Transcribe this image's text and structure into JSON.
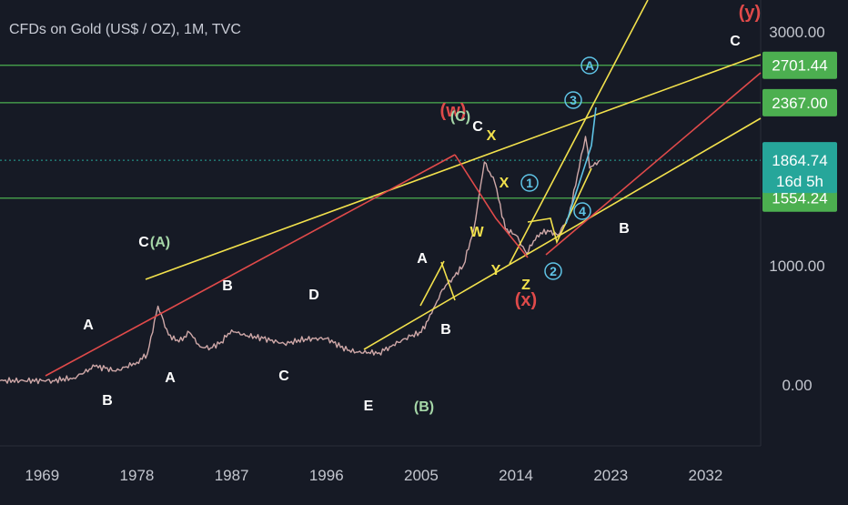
{
  "chart_data": {
    "type": "line",
    "title": "CFDs on Gold (US$ / OZ), 1M, TVC",
    "x_tick_labels": [
      "1969",
      "1978",
      "1987",
      "1996",
      "2005",
      "2014",
      "2023",
      "2032"
    ],
    "x_range": [
      1965,
      2040
    ],
    "y_tick_labels": [
      "3000.00",
      "1000.00",
      "0.00"
    ],
    "series": [
      {
        "x": [
          1965,
          1970,
          1972,
          1974,
          1975,
          1976,
          1978,
          1979,
          1980,
          1981,
          1982,
          1983,
          1984,
          1985,
          1986,
          1987,
          1988,
          1990,
          1992,
          1994,
          1996,
          1998,
          1999,
          2001,
          2002,
          2004,
          2005,
          2006,
          2007,
          2008,
          2009,
          2010,
          2011,
          2012,
          2013,
          2014,
          2015,
          2016,
          2017,
          2018,
          2019,
          2020,
          2020.6,
          2021,
          2022
        ],
        "y": [
          35,
          36,
          58,
          155,
          140,
          115,
          190,
          260,
          660,
          420,
          360,
          440,
          320,
          310,
          360,
          460,
          420,
          390,
          345,
          385,
          390,
          290,
          275,
          270,
          320,
          410,
          440,
          600,
          800,
          900,
          1000,
          1300,
          1850,
          1680,
          1300,
          1250,
          1100,
          1250,
          1290,
          1250,
          1400,
          1800,
          2065,
          1800,
          1864.74
        ]
      }
    ],
    "price_levels": [
      {
        "value": "2701.44",
        "color": "#4caf50"
      },
      {
        "value": "2367.00",
        "color": "#4caf50"
      },
      {
        "value": "1554.24",
        "color": "#4caf50"
      }
    ],
    "current_price": {
      "value": "1864.74",
      "countdown": "16d 5h",
      "color": "#26a69a"
    },
    "wave_labels": [
      {
        "text": "(y)",
        "color": "#e04a4a"
      },
      {
        "text": "C",
        "color": "#ffffff"
      },
      {
        "text": "A",
        "color": "#5fc4e6"
      },
      {
        "text": "3",
        "color": "#5fc4e6"
      },
      {
        "text": "(w)",
        "color": "#e04a4a"
      },
      {
        "text": "(C)",
        "color": "#a5d6a7"
      },
      {
        "text": "C",
        "color": "#ffffff"
      },
      {
        "text": "X",
        "color": "#f2e14c"
      },
      {
        "text": "X",
        "color": "#f2e14c"
      },
      {
        "text": "1",
        "color": "#5fc4e6"
      },
      {
        "text": "W",
        "color": "#f2e14c"
      },
      {
        "text": "4",
        "color": "#5fc4e6"
      },
      {
        "text": "B",
        "color": "#ffffff"
      },
      {
        "text": "C",
        "color": "#ffffff"
      },
      {
        "text": "(A)",
        "color": "#a5d6a7"
      },
      {
        "text": "A",
        "color": "#ffffff"
      },
      {
        "text": "Y",
        "color": "#f2e14c"
      },
      {
        "text": "2",
        "color": "#5fc4e6"
      },
      {
        "text": "Z",
        "color": "#f2e14c"
      },
      {
        "text": "(x)",
        "color": "#e04a4a"
      },
      {
        "text": "B",
        "color": "#ffffff"
      },
      {
        "text": "D",
        "color": "#ffffff"
      },
      {
        "text": "A",
        "color": "#ffffff"
      },
      {
        "text": "B",
        "color": "#ffffff"
      },
      {
        "text": "B",
        "color": "#ffffff"
      },
      {
        "text": "A",
        "color": "#ffffff"
      },
      {
        "text": "C",
        "color": "#ffffff"
      },
      {
        "text": "E",
        "color": "#ffffff"
      },
      {
        "text": "(B)",
        "color": "#a5d6a7"
      }
    ],
    "colors": {
      "background": "#161a25",
      "price_line": "#cfa8a8",
      "yellow_trend": "#f2e14c",
      "red_trend": "#e04a4a",
      "cyan_trend": "#5fc4e6"
    },
    "grid": false,
    "legend": "none"
  }
}
